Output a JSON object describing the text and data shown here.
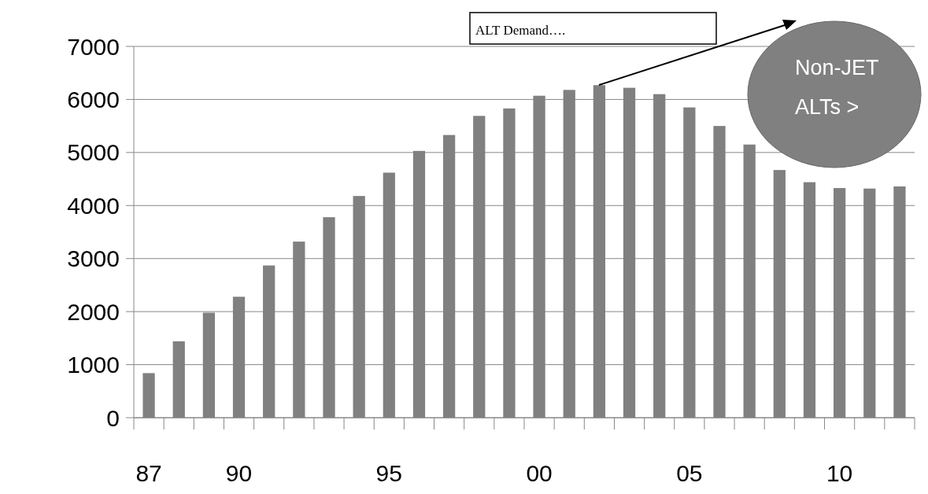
{
  "chart_data": {
    "type": "bar",
    "categories": [
      "87",
      null,
      null,
      "90",
      null,
      null,
      null,
      null,
      "95",
      null,
      null,
      null,
      null,
      "00",
      null,
      null,
      null,
      null,
      "05",
      null,
      null,
      null,
      null,
      "10",
      null,
      null
    ],
    "values": [
      840,
      1440,
      1980,
      2280,
      2870,
      3320,
      3780,
      4180,
      4620,
      5030,
      5330,
      5690,
      5830,
      6070,
      6180,
      6270,
      6220,
      6100,
      5850,
      5500,
      5150,
      4670,
      4440,
      4330,
      4320,
      4360
    ],
    "color": "#808080",
    "ylim": [
      0,
      7000
    ],
    "yticks": [
      0,
      1000,
      2000,
      3000,
      4000,
      5000,
      6000,
      7000
    ],
    "grid": "y",
    "annotations": [
      "ALT Demand….",
      "Non-JET ALTs >"
    ]
  }
}
